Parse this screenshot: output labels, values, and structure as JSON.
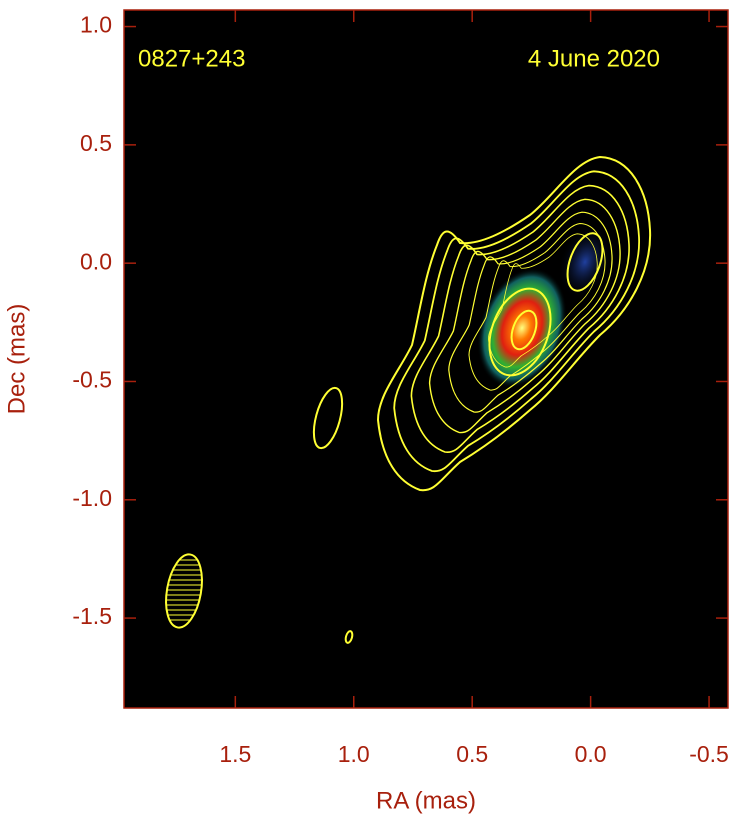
{
  "chart_data": {
    "type": "contour",
    "annotations": [
      "0827+243",
      "4 June 2020"
    ],
    "x_label": "RA (mas)",
    "y_label": "Dec (mas)",
    "xlim": [
      1.97,
      -0.58
    ],
    "ylim": [
      -1.88,
      1.07
    ],
    "xticks": [
      1.5,
      {
        "value": 1.0,
        "label": "1.0"
      },
      0.5,
      {
        "value": 0.0,
        "label": "0.0"
      },
      -0.5
    ],
    "yticks": [
      {
        "value": 1.0,
        "label": "1.0"
      },
      0.5,
      {
        "value": 0.0,
        "label": "0.0"
      },
      -0.5,
      {
        "value": -1.0,
        "label": "-1.0"
      },
      -1.5
    ]
  }
}
